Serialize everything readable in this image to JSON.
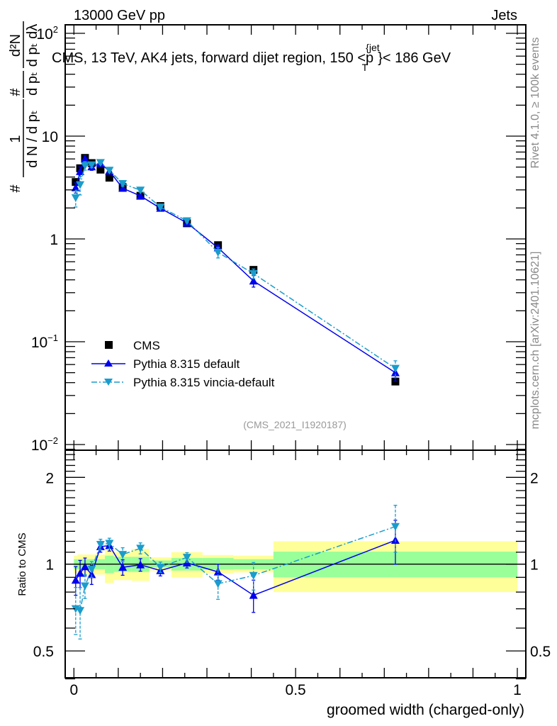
{
  "header": {
    "left": "13000 GeV pp",
    "right": "Jets"
  },
  "side_texts": {
    "rivet": "Rivet 4.1.0, ≥ 100k events",
    "mcplots": "mcplots.cern.ch [arXiv:2401.10621]"
  },
  "watermark": "(CMS_2021_I1920187)",
  "colors": {
    "cms": "#000000",
    "default": "#0000ee",
    "vincia": "#1a9ccc",
    "band_outer": "#ffff99",
    "band_inner": "#99ff99"
  },
  "chart_data": {
    "type": "line",
    "title": {
      "main": "CMS, 13 TeV, AK4 jets, forward dijet region, 150 <p",
      "sup": "{jet",
      "sub": "T",
      "end": "}< 186 GeV"
    },
    "xlabel": "groomed width (charged-only)",
    "ylabel": {
      "hash1": "#",
      "num1": "1",
      "den1": "d N / d pₜ",
      "hash2": "#",
      "den2": "d pₜ",
      "num3": "d²N",
      "den3": "d pₜ  dλ"
    },
    "ratio_ylabel": "Ratio to CMS",
    "xlim": [
      0,
      1
    ],
    "ylim": [
      0.009,
      120
    ],
    "yscale": "log",
    "ratio_ylim": [
      0.4,
      2.5
    ],
    "x_tick_labels": [
      {
        "v": 0,
        "t": "0"
      },
      {
        "v": 0.5,
        "t": "0.5"
      },
      {
        "v": 1,
        "t": "1"
      }
    ],
    "y_tick_labels": [
      {
        "v": 0.01,
        "b": "10",
        "e": "−2"
      },
      {
        "v": 0.1,
        "b": "10",
        "e": "−1"
      },
      {
        "v": 1,
        "b": "1",
        "e": ""
      },
      {
        "v": 10,
        "b": "10",
        "e": ""
      },
      {
        "v": 100,
        "b": "10",
        "e": "2"
      }
    ],
    "ratio_tick_labels": [
      {
        "v": 0.5,
        "t": "0.5"
      },
      {
        "v": 1,
        "t": "1"
      },
      {
        "v": 2,
        "t": "2"
      }
    ],
    "bin_edges": [
      0,
      0.008,
      0.02,
      0.03,
      0.05,
      0.07,
      0.09,
      0.13,
      0.17,
      0.22,
      0.29,
      0.36,
      0.45,
      1.0
    ],
    "x": [
      0.004,
      0.014,
      0.025,
      0.04,
      0.06,
      0.08,
      0.11,
      0.15,
      0.195,
      0.255,
      0.325,
      0.405,
      0.725
    ],
    "legend_position": "lower-left",
    "series": [
      {
        "name": "CMS",
        "key": "cms",
        "marker": "square",
        "values": [
          3.58,
          4.87,
          6.14,
          5.47,
          4.72,
          3.94,
          3.19,
          2.63,
          2.09,
          1.42,
          0.87,
          0.5,
          0.041
        ]
      },
      {
        "name": "Pythia 8.315 default",
        "key": "default",
        "marker": "triangle-up",
        "line": "solid",
        "values": [
          3.15,
          4.53,
          6.02,
          5.03,
          5.43,
          4.57,
          3.11,
          2.62,
          1.99,
          1.43,
          0.82,
          0.39,
          0.05
        ],
        "ratio": [
          0.88,
          0.93,
          0.98,
          0.92,
          1.15,
          1.16,
          0.975,
          0.995,
          0.95,
          1.01,
          0.94,
          0.78,
          1.21
        ],
        "ratio_err": [
          0.1,
          0.1,
          0.07,
          0.07,
          0.05,
          0.05,
          0.06,
          0.05,
          0.04,
          0.04,
          0.06,
          0.1,
          0.21
        ]
      },
      {
        "name": "Pythia 8.315 vincia-default",
        "key": "vincia",
        "marker": "triangle-down",
        "line": "dashdot",
        "values": [
          2.51,
          3.36,
          5.16,
          5.25,
          5.52,
          4.65,
          3.45,
          2.98,
          2.04,
          1.5,
          0.74,
          0.46,
          0.055
        ],
        "ratio": [
          0.7,
          0.69,
          0.84,
          0.96,
          1.17,
          1.18,
          1.08,
          1.135,
          0.976,
          1.056,
          0.855,
          0.913,
          1.35
        ],
        "ratio_err": [
          0.13,
          0.14,
          0.08,
          0.06,
          0.05,
          0.05,
          0.06,
          0.05,
          0.04,
          0.04,
          0.1,
          0.1,
          0.25
        ]
      }
    ],
    "ratio_bands": {
      "outer": [
        [
          0.93,
          1.07
        ],
        [
          0.92,
          1.08
        ],
        [
          0.92,
          1.08
        ],
        [
          0.92,
          1.08
        ],
        [
          0.92,
          1.08
        ],
        [
          0.86,
          1.135
        ],
        [
          0.88,
          1.1
        ],
        [
          0.875,
          1.13
        ],
        [
          0.95,
          1.056
        ],
        [
          0.9,
          1.1
        ],
        [
          0.93,
          1.076
        ],
        [
          0.936,
          1.07
        ],
        [
          0.8,
          1.2
        ]
      ],
      "inner": [
        [
          0.96,
          1.04
        ],
        [
          0.96,
          1.04
        ],
        [
          0.96,
          1.04
        ],
        [
          0.96,
          1.04
        ],
        [
          0.96,
          1.04
        ],
        [
          0.93,
          1.07
        ],
        [
          0.94,
          1.06
        ],
        [
          0.94,
          1.06
        ],
        [
          0.975,
          1.03
        ],
        [
          0.95,
          1.05
        ],
        [
          0.958,
          1.05
        ],
        [
          0.96,
          1.04
        ],
        [
          0.9,
          1.105
        ]
      ]
    }
  }
}
